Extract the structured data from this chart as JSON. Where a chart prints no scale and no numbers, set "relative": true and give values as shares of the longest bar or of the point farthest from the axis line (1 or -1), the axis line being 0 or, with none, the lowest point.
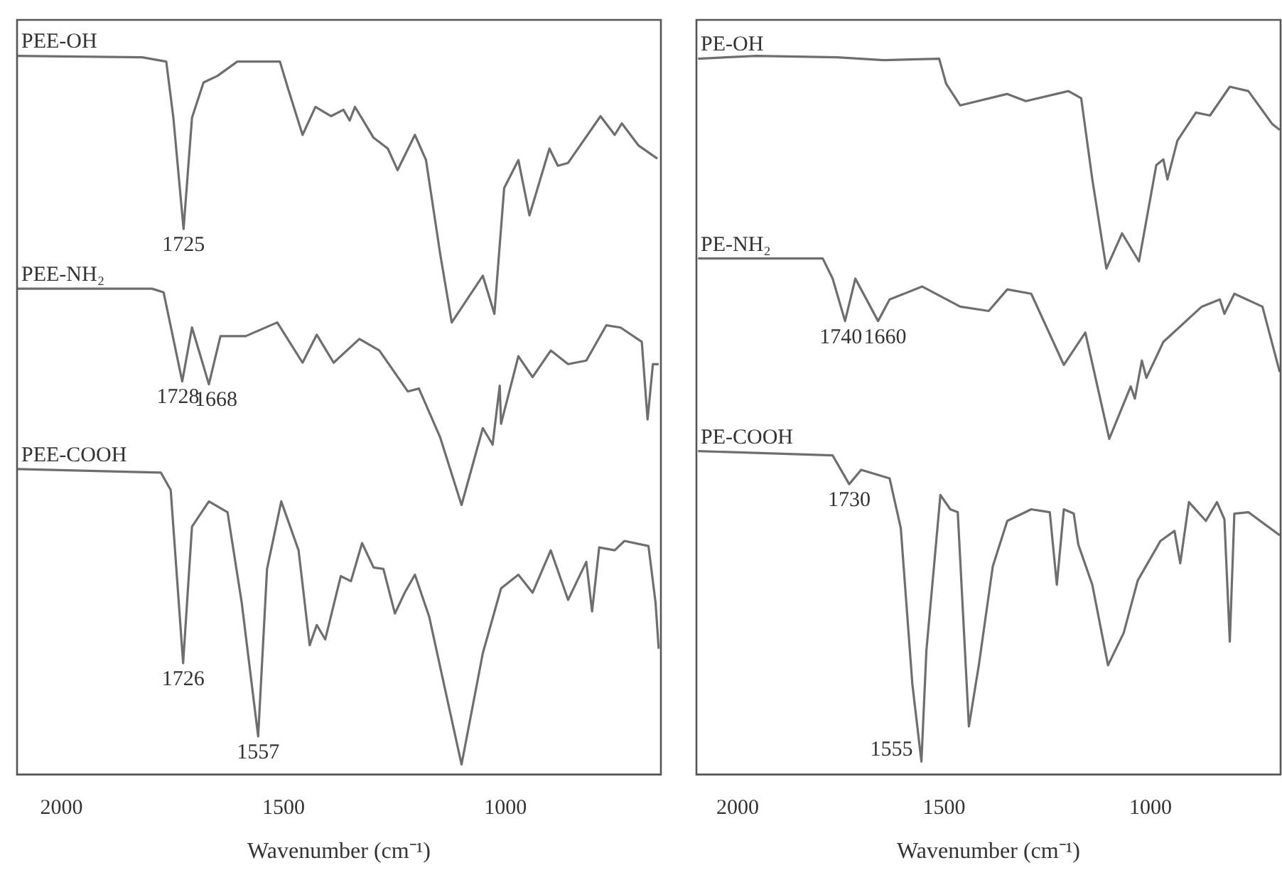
{
  "chart_data": [
    {
      "type": "line",
      "relative": true,
      "xlabel": "Wavenumber (cm⁻¹)",
      "xlim": [
        2100,
        650
      ],
      "xticks": [
        2000,
        1500,
        1000
      ],
      "series": [
        {
          "name": "PEE-OH",
          "color": "#6e6e6e",
          "x": [
            2099,
            1818,
            1764,
            1748,
            1725,
            1706,
            1680,
            1649,
            1604,
            1508,
            1489,
            1457,
            1428,
            1393,
            1365,
            1351,
            1339,
            1297,
            1265,
            1243,
            1204,
            1179,
            1147,
            1121,
            1051,
            1025,
            1003,
            971,
            946,
            901,
            882,
            859,
            786,
            754,
            738,
            700,
            658
          ],
          "values": [
            1.0,
            0.998,
            0.992,
            0.914,
            0.759,
            0.914,
            0.963,
            0.972,
            0.992,
            0.992,
            0.953,
            0.89,
            0.929,
            0.916,
            0.925,
            0.91,
            0.929,
            0.886,
            0.871,
            0.841,
            0.89,
            0.855,
            0.724,
            0.629,
            0.694,
            0.641,
            0.816,
            0.855,
            0.778,
            0.871,
            0.847,
            0.851,
            0.916,
            0.89,
            0.906,
            0.875,
            0.857
          ]
        },
        {
          "name": "PEE-NH₂",
          "color": "#6e6e6e",
          "x": [
            2099,
            1796,
            1770,
            1728,
            1706,
            1668,
            1642,
            1585,
            1514,
            1457,
            1425,
            1387,
            1329,
            1284,
            1220,
            1195,
            1147,
            1099,
            1051,
            1029,
            1013,
            1010,
            971,
            939,
            898,
            859,
            818,
            773,
            741,
            693,
            680,
            668,
            655
          ],
          "values": [
            0.676,
            0.676,
            0.671,
            0.547,
            0.622,
            0.543,
            0.61,
            0.61,
            0.629,
            0.573,
            0.612,
            0.573,
            0.606,
            0.59,
            0.533,
            0.537,
            0.469,
            0.375,
            0.482,
            0.459,
            0.541,
            0.488,
            0.582,
            0.553,
            0.59,
            0.571,
            0.576,
            0.625,
            0.622,
            0.602,
            0.494,
            0.571,
            0.571
          ]
        },
        {
          "name": "PEE-COOH",
          "color": "#6e6e6e",
          "x": [
            2099,
            1776,
            1754,
            1726,
            1706,
            1668,
            1626,
            1594,
            1557,
            1537,
            1505,
            1466,
            1441,
            1425,
            1406,
            1371,
            1348,
            1323,
            1297,
            1275,
            1249,
            1227,
            1204,
            1172,
            1099,
            1051,
            1010,
            971,
            939,
            898,
            859,
            818,
            805,
            789,
            754,
            732,
            678,
            662,
            655
          ],
          "values": [
            0.425,
            0.42,
            0.396,
            0.155,
            0.345,
            0.38,
            0.365,
            0.239,
            0.053,
            0.286,
            0.38,
            0.312,
            0.18,
            0.208,
            0.188,
            0.276,
            0.269,
            0.322,
            0.288,
            0.286,
            0.224,
            0.253,
            0.278,
            0.22,
            0.014,
            0.169,
            0.259,
            0.278,
            0.253,
            0.312,
            0.243,
            0.296,
            0.227,
            0.316,
            0.312,
            0.325,
            0.318,
            0.239,
            0.175
          ]
        }
      ],
      "annotations": [
        {
          "text": "1725",
          "x": 1725,
          "y": 0.759
        },
        {
          "text": "1728",
          "x": 1728,
          "y": 0.547
        },
        {
          "text": "1668",
          "x": 1668,
          "y": 0.543
        },
        {
          "text": "1726",
          "x": 1726,
          "y": 0.155
        },
        {
          "text": "1557",
          "x": 1557,
          "y": 0.053
        }
      ]
    },
    {
      "type": "line",
      "relative": true,
      "xlabel": "Wavenumber (cm⁻¹)",
      "xlim": [
        2100,
        685
      ],
      "xticks": [
        2000,
        1500,
        1000
      ],
      "series": [
        {
          "name": "PE-OH",
          "color": "#6e6e6e",
          "x": [
            2096,
            1955,
            1759,
            1646,
            1512,
            1495,
            1461,
            1347,
            1302,
            1199,
            1168,
            1141,
            1107,
            1069,
            1028,
            986,
            969,
            959,
            935,
            890,
            856,
            808,
            763,
            705,
            687
          ],
          "values": [
            0.996,
            1.0,
            0.998,
            0.994,
            0.996,
            0.961,
            0.931,
            0.947,
            0.937,
            0.951,
            0.941,
            0.828,
            0.704,
            0.753,
            0.714,
            0.848,
            0.856,
            0.828,
            0.882,
            0.921,
            0.917,
            0.957,
            0.951,
            0.905,
            0.897
          ]
        },
        {
          "name": "PE-NH₂",
          "color": "#6e6e6e",
          "x": [
            2096,
            1794,
            1770,
            1740,
            1715,
            1660,
            1632,
            1553,
            1461,
            1392,
            1347,
            1289,
            1210,
            1158,
            1100,
            1048,
            1038,
            1021,
            1010,
            969,
            876,
            832,
            821,
            797,
            729,
            687
          ],
          "values": [
            0.718,
            0.718,
            0.69,
            0.631,
            0.69,
            0.631,
            0.661,
            0.679,
            0.651,
            0.645,
            0.675,
            0.669,
            0.57,
            0.615,
            0.467,
            0.54,
            0.523,
            0.576,
            0.552,
            0.602,
            0.651,
            0.661,
            0.641,
            0.669,
            0.651,
            0.56
          ]
        },
        {
          "name": "PE-COOH",
          "color": "#6e6e6e",
          "x": [
            2096,
            1770,
            1730,
            1701,
            1632,
            1605,
            1577,
            1555,
            1543,
            1509,
            1485,
            1467,
            1440,
            1416,
            1382,
            1347,
            1289,
            1244,
            1227,
            1210,
            1186,
            1175,
            1141,
            1103,
            1065,
            1031,
            976,
            942,
            928,
            907,
            866,
            839,
            821,
            808,
            797,
            763,
            687
          ],
          "values": [
            0.45,
            0.444,
            0.404,
            0.424,
            0.412,
            0.343,
            0.126,
            0.018,
            0.172,
            0.389,
            0.369,
            0.365,
            0.067,
            0.152,
            0.29,
            0.353,
            0.369,
            0.365,
            0.264,
            0.369,
            0.363,
            0.32,
            0.264,
            0.152,
            0.197,
            0.27,
            0.325,
            0.339,
            0.294,
            0.379,
            0.353,
            0.379,
            0.355,
            0.185,
            0.363,
            0.365,
            0.333
          ]
        }
      ],
      "annotations": [
        {
          "text": "1740",
          "x": 1740,
          "y": 0.631
        },
        {
          "text": "1660",
          "x": 1660,
          "y": 0.631
        },
        {
          "text": "1730",
          "x": 1730,
          "y": 0.404
        },
        {
          "text": "1555",
          "x": 1555,
          "y": 0.018
        }
      ]
    }
  ]
}
